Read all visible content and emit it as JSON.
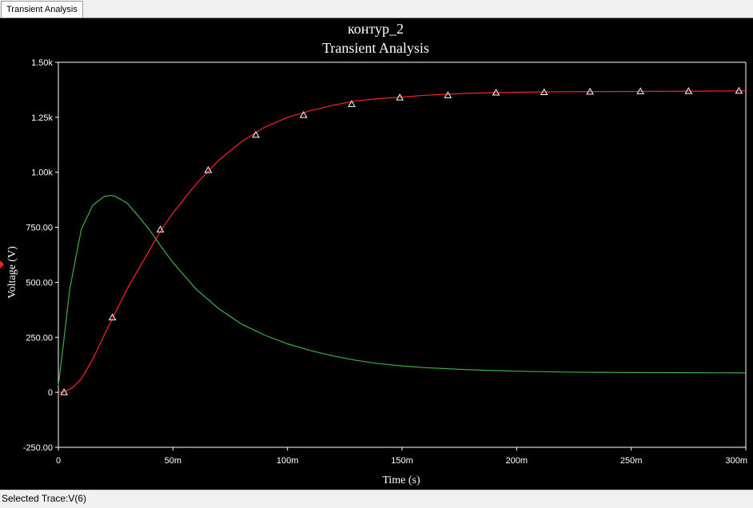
{
  "tab": {
    "label": "Transient Analysis"
  },
  "status": {
    "text": "Selected Trace:V(6)"
  },
  "chart_data": {
    "type": "line",
    "title": "контур_2",
    "subtitle": "Transient Analysis",
    "xlabel": "Time (s)",
    "ylabel": "Voltage (V)",
    "xlim": [
      0,
      0.3
    ],
    "ylim": [
      -250,
      1500
    ],
    "xticks": [
      {
        "value": 0,
        "label": "0"
      },
      {
        "value": 0.05,
        "label": "50m"
      },
      {
        "value": 0.1,
        "label": "100m"
      },
      {
        "value": 0.15,
        "label": "150m"
      },
      {
        "value": 0.2,
        "label": "200m"
      },
      {
        "value": 0.25,
        "label": "250m"
      },
      {
        "value": 0.3,
        "label": "300m"
      }
    ],
    "yticks": [
      {
        "value": -250,
        "label": "-250.00"
      },
      {
        "value": 0,
        "label": "0"
      },
      {
        "value": 250,
        "label": "250.00"
      },
      {
        "value": 500,
        "label": "500.00"
      },
      {
        "value": 750,
        "label": "750.00"
      },
      {
        "value": 1000,
        "label": "1.00k"
      },
      {
        "value": 1250,
        "label": "1.25k"
      },
      {
        "value": 1500,
        "label": "1.50k"
      }
    ],
    "grid": false,
    "series": [
      {
        "color": "#ff2020",
        "marker": "triangle",
        "x": [
          0,
          0.002,
          0.006,
          0.01,
          0.015,
          0.02,
          0.025,
          0.03,
          0.035,
          0.04,
          0.045,
          0.05,
          0.055,
          0.06,
          0.065,
          0.07,
          0.08,
          0.09,
          0.1,
          0.11,
          0.12,
          0.13,
          0.14,
          0.15,
          0.16,
          0.17,
          0.18,
          0.19,
          0.2,
          0.22,
          0.24,
          0.26,
          0.28,
          0.3
        ],
        "y": [
          0,
          0,
          20,
          60,
          150,
          260,
          365,
          470,
          560,
          650,
          740,
          815,
          880,
          945,
          1000,
          1055,
          1140,
          1205,
          1250,
          1280,
          1305,
          1325,
          1335,
          1342,
          1350,
          1355,
          1360,
          1362,
          1364,
          1366,
          1367,
          1368,
          1369,
          1370
        ],
        "markers_x": [
          0.0025,
          0.0236,
          0.0445,
          0.0654,
          0.0862,
          0.107,
          0.128,
          0.149,
          0.17,
          0.191,
          0.212,
          0.232,
          0.254,
          0.275,
          0.297
        ],
        "markers_y": [
          0,
          340,
          740,
          1010,
          1170,
          1260,
          1310,
          1340,
          1350,
          1362,
          1364,
          1366,
          1368,
          1369,
          1370
        ]
      },
      {
        "color": "#3cb043",
        "x": [
          0,
          0.002,
          0.005,
          0.01,
          0.015,
          0.02,
          0.023,
          0.025,
          0.03,
          0.035,
          0.04,
          0.045,
          0.05,
          0.06,
          0.07,
          0.08,
          0.09,
          0.1,
          0.11,
          0.12,
          0.13,
          0.14,
          0.15,
          0.16,
          0.18,
          0.2,
          0.22,
          0.25,
          0.28,
          0.3
        ],
        "y": [
          30,
          200,
          470,
          740,
          850,
          890,
          895,
          890,
          860,
          800,
          735,
          660,
          590,
          470,
          380,
          310,
          260,
          220,
          190,
          165,
          145,
          130,
          120,
          112,
          102,
          96,
          92,
          90,
          89,
          88
        ]
      }
    ]
  }
}
